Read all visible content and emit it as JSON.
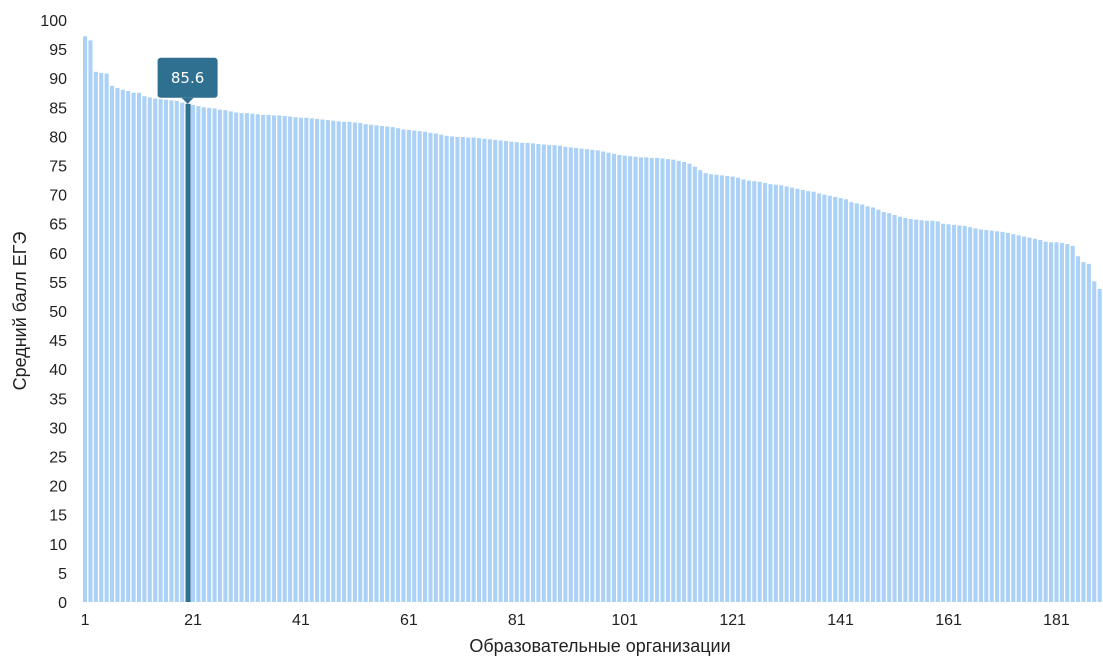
{
  "chart_data": {
    "type": "bar",
    "xlabel": "Образовательные организации",
    "ylabel": "Средний балл ЕГЭ",
    "ylim": [
      0,
      100
    ],
    "yticks": [
      0,
      5,
      10,
      15,
      20,
      25,
      30,
      35,
      40,
      45,
      50,
      55,
      60,
      65,
      70,
      75,
      80,
      85,
      90,
      95,
      100
    ],
    "xticks": [
      1,
      21,
      41,
      61,
      81,
      101,
      121,
      141,
      161,
      181
    ],
    "x_first": 1,
    "grid": false,
    "values": [
      97.2,
      96.5,
      91.1,
      90.9,
      90.8,
      88.7,
      88.3,
      88.0,
      87.8,
      87.5,
      87.5,
      86.9,
      86.7,
      86.5,
      86.4,
      86.3,
      86.2,
      86.1,
      85.8,
      85.6,
      85.4,
      85.2,
      85.0,
      84.9,
      84.8,
      84.6,
      84.5,
      84.3,
      84.1,
      84.0,
      84.0,
      83.9,
      83.8,
      83.7,
      83.7,
      83.6,
      83.6,
      83.5,
      83.4,
      83.3,
      83.2,
      83.2,
      83.1,
      83.0,
      82.9,
      82.8,
      82.7,
      82.6,
      82.5,
      82.5,
      82.4,
      82.3,
      82.1,
      82.0,
      81.9,
      81.8,
      81.7,
      81.6,
      81.4,
      81.2,
      81.1,
      81.0,
      80.9,
      80.8,
      80.6,
      80.5,
      80.3,
      80.1,
      80.0,
      79.9,
      79.9,
      79.8,
      79.8,
      79.7,
      79.6,
      79.5,
      79.4,
      79.3,
      79.2,
      79.1,
      79.0,
      78.9,
      78.9,
      78.8,
      78.7,
      78.6,
      78.5,
      78.5,
      78.4,
      78.2,
      78.1,
      78.0,
      77.9,
      77.8,
      77.7,
      77.6,
      77.4,
      77.2,
      77.0,
      76.8,
      76.7,
      76.6,
      76.5,
      76.4,
      76.4,
      76.3,
      76.3,
      76.2,
      76.1,
      76.0,
      75.8,
      75.6,
      75.3,
      74.8,
      74.2,
      73.7,
      73.5,
      73.4,
      73.3,
      73.2,
      73.1,
      72.9,
      72.6,
      72.4,
      72.3,
      72.2,
      72.0,
      71.8,
      71.7,
      71.6,
      71.4,
      71.2,
      71.0,
      70.8,
      70.6,
      70.5,
      70.2,
      70.0,
      69.8,
      69.6,
      69.4,
      69.2,
      68.7,
      68.5,
      68.3,
      68.0,
      67.8,
      67.4,
      67.0,
      66.8,
      66.5,
      66.2,
      66.0,
      65.8,
      65.7,
      65.6,
      65.5,
      65.5,
      65.4,
      65.0,
      64.9,
      64.8,
      64.7,
      64.6,
      64.4,
      64.2,
      64.0,
      63.9,
      63.8,
      63.7,
      63.6,
      63.4,
      63.2,
      63.0,
      62.8,
      62.6,
      62.4,
      62.2,
      61.9,
      61.8,
      61.8,
      61.7,
      61.5,
      61.2,
      59.4,
      58.4,
      58.1,
      55.1,
      53.8
    ],
    "highlight": {
      "index": 19,
      "label": "85.6",
      "color": "#2f6f8f"
    },
    "bar_color": "#acd1f7"
  }
}
